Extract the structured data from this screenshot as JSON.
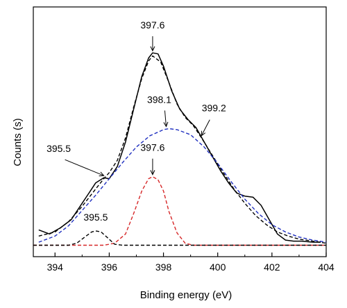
{
  "chart_data": {
    "type": "line",
    "xlabel": "Binding energy (eV)",
    "ylabel": "Counts (s)",
    "xlim": [
      393.2,
      404
    ],
    "ylim": [
      0,
      100
    ],
    "x_ticks": [
      394,
      396,
      398,
      400,
      402,
      404
    ],
    "x_tick_labels": [
      "394",
      "396",
      "398",
      "400",
      "402",
      "404"
    ],
    "grid": false,
    "series": [
      {
        "style": "solid",
        "color": "#000000",
        "points": [
          [
            393.4,
            8.0
          ],
          [
            393.8,
            6.0
          ],
          [
            394.2,
            9.0
          ],
          [
            394.6,
            13.0
          ],
          [
            395.0,
            21.0
          ],
          [
            395.3,
            27.0
          ],
          [
            395.5,
            31.0
          ],
          [
            395.8,
            33.5
          ],
          [
            396.0,
            33.0
          ],
          [
            396.3,
            39.0
          ],
          [
            396.6,
            51.0
          ],
          [
            396.9,
            67.0
          ],
          [
            397.2,
            83.0
          ],
          [
            397.45,
            92.0
          ],
          [
            397.6,
            94.5
          ],
          [
            397.8,
            94.0
          ],
          [
            398.0,
            88.0
          ],
          [
            398.3,
            76.0
          ],
          [
            398.6,
            67.0
          ],
          [
            398.9,
            62.0
          ],
          [
            399.2,
            58.0
          ],
          [
            399.5,
            51.0
          ],
          [
            399.8,
            44.0
          ],
          [
            400.1,
            37.0
          ],
          [
            400.4,
            31.0
          ],
          [
            400.7,
            26.0
          ],
          [
            401.0,
            24.5
          ],
          [
            401.3,
            24.0
          ],
          [
            401.6,
            20.0
          ],
          [
            401.9,
            13.0
          ],
          [
            402.2,
            6.0
          ],
          [
            402.5,
            3.0
          ],
          [
            402.8,
            2.5
          ],
          [
            403.1,
            2.5
          ],
          [
            403.5,
            2.0
          ],
          [
            403.8,
            2.0
          ]
        ]
      },
      {
        "style": "dashed",
        "color": "#000000",
        "points": [
          [
            393.4,
            5.0
          ],
          [
            394.0,
            7.0
          ],
          [
            394.5,
            12.0
          ],
          [
            395.0,
            19.5
          ],
          [
            395.5,
            28.0
          ],
          [
            395.8,
            33.0
          ],
          [
            396.0,
            36.0
          ],
          [
            396.3,
            42.0
          ],
          [
            396.6,
            53.0
          ],
          [
            396.9,
            68.0
          ],
          [
            397.2,
            82.0
          ],
          [
            397.45,
            90.5
          ],
          [
            397.6,
            93.0
          ],
          [
            397.9,
            90.0
          ],
          [
            398.2,
            80.0
          ],
          [
            398.5,
            69.5
          ],
          [
            398.8,
            63.0
          ],
          [
            399.1,
            59.0
          ],
          [
            399.4,
            53.0
          ],
          [
            399.8,
            44.5
          ],
          [
            400.2,
            36.0
          ],
          [
            400.6,
            28.0
          ],
          [
            401.0,
            21.0
          ],
          [
            401.4,
            15.0
          ],
          [
            401.8,
            10.5
          ],
          [
            402.2,
            7.0
          ],
          [
            402.6,
            5.0
          ],
          [
            403.0,
            3.5
          ],
          [
            403.5,
            2.5
          ],
          [
            404.0,
            1.5
          ]
        ]
      },
      {
        "style": "dashed",
        "color": "#1f2fbf",
        "points": [
          [
            393.4,
            2.0
          ],
          [
            394.0,
            5.0
          ],
          [
            394.5,
            10.0
          ],
          [
            395.0,
            17.5
          ],
          [
            395.5,
            25.0
          ],
          [
            396.0,
            33.0
          ],
          [
            396.5,
            41.0
          ],
          [
            397.0,
            48.5
          ],
          [
            397.5,
            54.0
          ],
          [
            398.0,
            57.0
          ],
          [
            398.2,
            57.5
          ],
          [
            398.5,
            57.0
          ],
          [
            399.0,
            54.5
          ],
          [
            399.5,
            48.5
          ],
          [
            400.0,
            40.5
          ],
          [
            400.5,
            31.5
          ],
          [
            401.0,
            23.0
          ],
          [
            401.5,
            16.0
          ],
          [
            402.0,
            10.5
          ],
          [
            402.5,
            7.0
          ],
          [
            403.0,
            4.5
          ],
          [
            403.5,
            3.0
          ],
          [
            404.0,
            2.0
          ]
        ]
      },
      {
        "style": "dashed",
        "color": "#d62728",
        "points": [
          [
            393.2,
            0.5
          ],
          [
            395.8,
            0.5
          ],
          [
            396.2,
            1.5
          ],
          [
            396.6,
            6.0
          ],
          [
            396.9,
            16.0
          ],
          [
            397.2,
            27.0
          ],
          [
            397.45,
            33.0
          ],
          [
            397.6,
            34.0
          ],
          [
            397.8,
            32.5
          ],
          [
            398.0,
            27.0
          ],
          [
            398.2,
            17.0
          ],
          [
            398.5,
            6.5
          ],
          [
            398.8,
            1.5
          ],
          [
            399.1,
            0.5
          ],
          [
            404.0,
            0.5
          ]
        ]
      },
      {
        "style": "dashed",
        "color": "#000000",
        "points": [
          [
            393.2,
            0.5
          ],
          [
            394.5,
            0.5
          ],
          [
            394.8,
            1.5
          ],
          [
            395.1,
            4.5
          ],
          [
            395.35,
            7.0
          ],
          [
            395.5,
            7.5
          ],
          [
            395.7,
            7.0
          ],
          [
            395.95,
            4.0
          ],
          [
            396.2,
            1.0
          ],
          [
            396.5,
            0.5
          ],
          [
            404.0,
            0.5
          ]
        ]
      }
    ],
    "annotations": [
      {
        "text": "397.6",
        "x": 397.6,
        "y": 94.5,
        "arrow": true
      },
      {
        "text": "398.1",
        "x": 398.1,
        "y": 57.5,
        "arrow": true
      },
      {
        "text": "399.2",
        "x": 399.4,
        "y": 53.0,
        "arrow": true
      },
      {
        "text": "395.5",
        "x": 395.8,
        "y": 33.5,
        "arrow": true
      },
      {
        "text": "397.6",
        "x": 397.6,
        "y": 34.0,
        "arrow": true
      },
      {
        "text": "395.5",
        "x": 395.5,
        "y": 7.5,
        "arrow": false
      }
    ]
  }
}
